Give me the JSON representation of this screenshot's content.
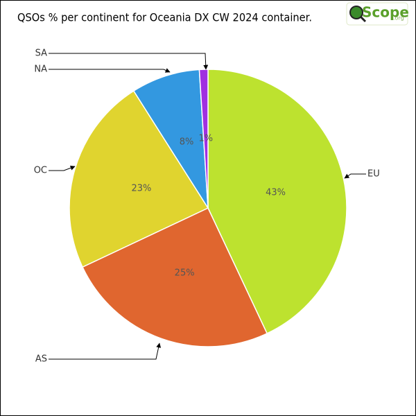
{
  "chart_data": {
    "type": "pie",
    "title": "QSOs % per continent for Oceania DX CW 2024 container.",
    "logo": {
      "text": "Scope",
      "suffix": ".org"
    },
    "categories": [
      "EU",
      "AS",
      "OC",
      "NA",
      "SA"
    ],
    "values": [
      43,
      25,
      23,
      8,
      1
    ],
    "value_labels": [
      "43%",
      "25%",
      "23%",
      "8%",
      "1%"
    ],
    "colors": [
      "#bde22f",
      "#e0662f",
      "#e0d42f",
      "#3398e0",
      "#a030e0"
    ]
  }
}
